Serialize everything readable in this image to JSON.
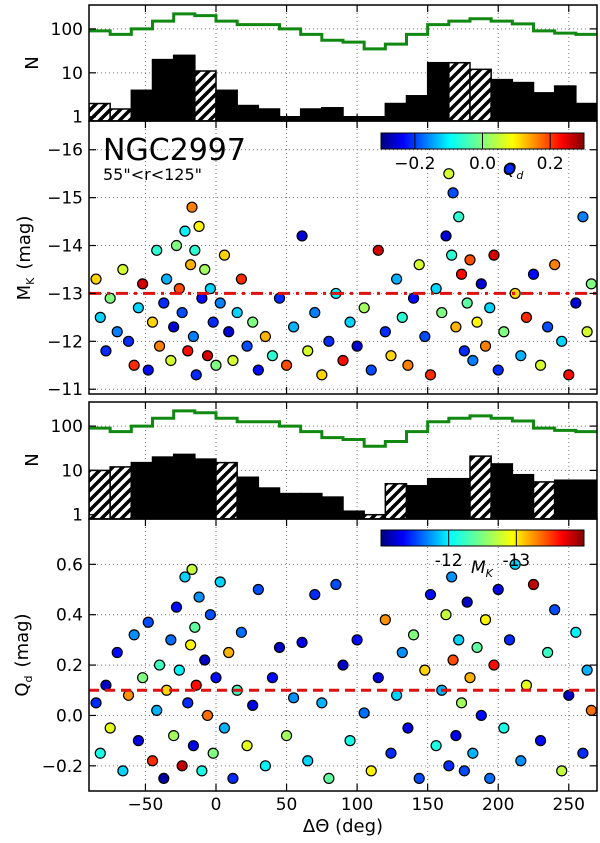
{
  "chart_data": [
    {
      "type": "histogram",
      "panel": "top-histogram-1",
      "ylabel": "N",
      "yscale": "log",
      "ylim": [
        0.8,
        350
      ],
      "yticks": [
        1,
        10,
        100
      ],
      "ytick_labels": [
        "1",
        "10",
        "100"
      ],
      "x_range": [
        -90,
        270
      ],
      "bin_width": 15,
      "bins_low": [
        -90,
        -75,
        -60,
        -45,
        -30,
        -15,
        0,
        15,
        30,
        45,
        60,
        75,
        90,
        105,
        120,
        135,
        150,
        165,
        180,
        195,
        210,
        225,
        240,
        255
      ],
      "counts": [
        2,
        1.5,
        4,
        20,
        25,
        11,
        4,
        1.8,
        1.5,
        1,
        1.5,
        1.6,
        1,
        1,
        2,
        3,
        17,
        17,
        12,
        7,
        6,
        3.5,
        5,
        2
      ],
      "hatched": [
        true,
        true,
        false,
        false,
        false,
        true,
        false,
        false,
        false,
        false,
        false,
        false,
        false,
        false,
        false,
        false,
        false,
        true,
        true,
        false,
        false,
        false,
        false,
        false
      ],
      "envelope_values": [
        90,
        75,
        100,
        150,
        220,
        200,
        150,
        125,
        125,
        100,
        75,
        55,
        50,
        35,
        45,
        75,
        125,
        150,
        170,
        150,
        130,
        90,
        80,
        75
      ],
      "envelope_color": "#118811"
    },
    {
      "type": "scatter",
      "panel": "top-scatter-MK",
      "title": "NGC2997",
      "subtitle": "55\"<r<125\"",
      "xlim": [
        -90,
        270
      ],
      "ylim": [
        -10.9,
        -16.6
      ],
      "ylabel": "M_K  (mag)",
      "yticks": [
        -11,
        -12,
        -13,
        -14,
        -15,
        -16
      ],
      "ytick_labels": [
        "−11",
        "−12",
        "−13",
        "−14",
        "−15",
        "−16"
      ],
      "threshold": -13,
      "threshold_color": "#dd1111",
      "colorbar": {
        "label": "Q_d",
        "range": [
          -0.3,
          0.3
        ],
        "ticks": [
          -0.2,
          0.0,
          0.2
        ],
        "tick_labels": [
          "−0.2",
          "0.0",
          "0.2"
        ]
      },
      "points": [
        [
          -85,
          -13.3,
          0.1
        ],
        [
          -82,
          -12.5,
          -0.1
        ],
        [
          -78,
          -11.8,
          -0.2
        ],
        [
          -75,
          -12.9,
          0.0
        ],
        [
          -70,
          -12.2,
          -0.15
        ],
        [
          -66,
          -13.5,
          0.05
        ],
        [
          -62,
          -12.0,
          -0.2
        ],
        [
          -58,
          -11.5,
          0.2
        ],
        [
          -55,
          -12.7,
          -0.1
        ],
        [
          -52,
          -13.2,
          0.25
        ],
        [
          -48,
          -11.4,
          -0.22
        ],
        [
          -45,
          -12.4,
          0.1
        ],
        [
          -42,
          -13.9,
          -0.05
        ],
        [
          -40,
          -11.9,
          0.15
        ],
        [
          -37,
          -12.8,
          -0.2
        ],
        [
          -35,
          -13.3,
          -0.12
        ],
        [
          -32,
          -11.6,
          0.05
        ],
        [
          -30,
          -12.3,
          -0.25
        ],
        [
          -28,
          -14.0,
          0.0
        ],
        [
          -26,
          -13.1,
          0.18
        ],
        [
          -24,
          -12.6,
          -0.18
        ],
        [
          -22,
          -14.3,
          -0.08
        ],
        [
          -20,
          -11.8,
          0.22
        ],
        [
          -18,
          -13.6,
          0.12
        ],
        [
          -17,
          -14.8,
          0.15
        ],
        [
          -16,
          -12.1,
          -0.15
        ],
        [
          -15,
          -13.9,
          -0.05
        ],
        [
          -14,
          -11.3,
          -0.2
        ],
        [
          -12,
          -14.4,
          0.08
        ],
        [
          -10,
          -12.9,
          -0.22
        ],
        [
          -8,
          -13.5,
          0.02
        ],
        [
          -6,
          -11.7,
          0.25
        ],
        [
          -4,
          -13.1,
          -0.1
        ],
        [
          -2,
          -12.4,
          -0.2
        ],
        [
          0,
          -11.5,
          0.0
        ],
        [
          3,
          -12.8,
          -0.15
        ],
        [
          6,
          -13.8,
          0.1
        ],
        [
          9,
          -12.2,
          -0.25
        ],
        [
          12,
          -11.6,
          0.05
        ],
        [
          15,
          -12.6,
          -0.1
        ],
        [
          18,
          -13.3,
          0.2
        ],
        [
          22,
          -11.9,
          -0.18
        ],
        [
          26,
          -12.4,
          0.0
        ],
        [
          30,
          -11.4,
          -0.22
        ],
        [
          35,
          -12.1,
          0.12
        ],
        [
          40,
          -11.7,
          -0.05
        ],
        [
          45,
          -12.9,
          -0.2
        ],
        [
          50,
          -11.5,
          0.18
        ],
        [
          55,
          -12.3,
          -0.12
        ],
        [
          61,
          -14.2,
          -0.25
        ],
        [
          65,
          -11.8,
          0.05
        ],
        [
          70,
          -12.6,
          -0.15
        ],
        [
          75,
          -11.3,
          0.1
        ],
        [
          80,
          -12.0,
          -0.2
        ],
        [
          85,
          -13.0,
          -0.08
        ],
        [
          90,
          -11.6,
          0.22
        ],
        [
          95,
          -12.4,
          -0.1
        ],
        [
          100,
          -11.9,
          -0.25
        ],
        [
          105,
          -12.7,
          0.02
        ],
        [
          110,
          -11.4,
          -0.18
        ],
        [
          115,
          -13.9,
          0.25
        ],
        [
          120,
          -12.2,
          -0.2
        ],
        [
          124,
          -11.7,
          0.1
        ],
        [
          128,
          -13.3,
          -0.12
        ],
        [
          132,
          -12.5,
          -0.05
        ],
        [
          136,
          -11.5,
          0.15
        ],
        [
          140,
          -12.9,
          -0.22
        ],
        [
          144,
          -13.6,
          0.05
        ],
        [
          148,
          -12.1,
          -0.18
        ],
        [
          152,
          -11.3,
          0.2
        ],
        [
          156,
          -13.1,
          -0.1
        ],
        [
          160,
          -12.6,
          0.0
        ],
        [
          163,
          -14.2,
          -0.25
        ],
        [
          165,
          -15.5,
          0.05
        ],
        [
          167,
          -13.8,
          -0.05
        ],
        [
          168,
          -15.1,
          -0.18
        ],
        [
          170,
          -12.3,
          0.12
        ],
        [
          172,
          -14.6,
          -0.05
        ],
        [
          174,
          -13.4,
          0.22
        ],
        [
          176,
          -11.8,
          -0.2
        ],
        [
          178,
          -12.8,
          -0.02
        ],
        [
          180,
          -13.7,
          0.18
        ],
        [
          182,
          -11.6,
          -0.15
        ],
        [
          185,
          -12.4,
          0.08
        ],
        [
          188,
          -13.2,
          -0.25
        ],
        [
          191,
          -11.9,
          0.15
        ],
        [
          194,
          -12.7,
          -0.1
        ],
        [
          197,
          -13.8,
          0.25
        ],
        [
          200,
          -11.4,
          -0.2
        ],
        [
          204,
          -12.2,
          0.0
        ],
        [
          208,
          -15.6,
          -0.2
        ],
        [
          212,
          -13.0,
          0.1
        ],
        [
          216,
          -11.7,
          -0.12
        ],
        [
          220,
          -12.5,
          0.2
        ],
        [
          225,
          -13.4,
          -0.22
        ],
        [
          230,
          -11.5,
          0.05
        ],
        [
          235,
          -12.3,
          -0.18
        ],
        [
          240,
          -13.6,
          0.15
        ],
        [
          245,
          -12.0,
          -0.1
        ],
        [
          250,
          -11.3,
          0.22
        ],
        [
          255,
          -12.8,
          -0.25
        ],
        [
          260,
          -14.6,
          -0.15
        ],
        [
          263,
          -12.2,
          0.05
        ],
        [
          266,
          -13.2,
          0.0
        ]
      ]
    },
    {
      "type": "histogram",
      "panel": "bottom-histogram-2",
      "ylabel": "N",
      "yscale": "log",
      "ylim": [
        0.8,
        350
      ],
      "yticks": [
        1,
        10,
        100
      ],
      "ytick_labels": [
        "1",
        "10",
        "100"
      ],
      "x_range": [
        -90,
        270
      ],
      "bin_width": 15,
      "bins_low": [
        -90,
        -75,
        -60,
        -45,
        -30,
        -15,
        0,
        15,
        30,
        45,
        60,
        75,
        90,
        105,
        120,
        135,
        150,
        165,
        180,
        195,
        210,
        225,
        240,
        255
      ],
      "counts": [
        10,
        12,
        15,
        20,
        23,
        18,
        15,
        7,
        4,
        3,
        3,
        2.5,
        1.2,
        1,
        5,
        4.5,
        6.5,
        6.5,
        21,
        14,
        8,
        5.5,
        6,
        6
      ],
      "hatched": [
        true,
        true,
        false,
        false,
        false,
        false,
        true,
        false,
        false,
        false,
        false,
        false,
        false,
        true,
        true,
        false,
        false,
        false,
        true,
        false,
        false,
        true,
        false,
        false
      ],
      "envelope_values": [
        90,
        75,
        100,
        150,
        220,
        200,
        150,
        125,
        125,
        100,
        75,
        55,
        50,
        35,
        45,
        75,
        125,
        150,
        170,
        150,
        130,
        90,
        80,
        75
      ],
      "envelope_color": "#118811"
    },
    {
      "type": "scatter",
      "panel": "bottom-scatter-Qd",
      "xlim": [
        -90,
        270
      ],
      "ylim": [
        -0.3,
        0.78
      ],
      "xlabel": "ΔΘ (deg)",
      "ylabel": "Q_d (mag)",
      "xticks": [
        -50,
        0,
        50,
        100,
        150,
        200,
        250
      ],
      "xtick_labels": [
        "−50",
        "0",
        "50",
        "100",
        "150",
        "200",
        "250"
      ],
      "yticks": [
        -0.2,
        0.0,
        0.2,
        0.4,
        0.6
      ],
      "ytick_labels": [
        "−0.2",
        "0.0",
        "0.2",
        "0.4",
        "0.6"
      ],
      "threshold": 0.1,
      "threshold_color": "#dd1111",
      "colorbar": {
        "label": "M_K",
        "range": [
          -11,
          -14
        ],
        "ticks": [
          -12,
          -13
        ],
        "tick_labels": [
          "-12",
          "-13"
        ]
      },
      "points": [
        [
          -85,
          0.05,
          -11.5
        ],
        [
          -82,
          -0.15,
          -12.2
        ],
        [
          -78,
          0.12,
          -11.2
        ],
        [
          -75,
          -0.05,
          -12.8
        ],
        [
          -70,
          0.25,
          -11.4
        ],
        [
          -66,
          -0.22,
          -12.0
        ],
        [
          -62,
          0.08,
          -13.2
        ],
        [
          -58,
          0.32,
          -11.8
        ],
        [
          -55,
          -0.1,
          -11.3
        ],
        [
          -52,
          0.15,
          -12.5
        ],
        [
          -48,
          0.37,
          -11.6
        ],
        [
          -45,
          -0.18,
          -13.5
        ],
        [
          -42,
          0.02,
          -11.9
        ],
        [
          -40,
          0.2,
          -12.3
        ],
        [
          -37,
          -0.25,
          -11.1
        ],
        [
          -35,
          0.1,
          -13.0
        ],
        [
          -32,
          0.3,
          -11.7
        ],
        [
          -30,
          -0.08,
          -12.6
        ],
        [
          -28,
          0.43,
          -11.4
        ],
        [
          -26,
          0.18,
          -12.1
        ],
        [
          -24,
          -0.2,
          -13.8
        ],
        [
          -22,
          0.55,
          -12.0
        ],
        [
          -20,
          0.05,
          -11.5
        ],
        [
          -18,
          0.28,
          -12.9
        ],
        [
          -17,
          0.58,
          -12.7
        ],
        [
          -16,
          -0.12,
          -11.3
        ],
        [
          -15,
          0.35,
          -12.4
        ],
        [
          -14,
          0.12,
          -13.6
        ],
        [
          -12,
          0.47,
          -11.8
        ],
        [
          -10,
          -0.22,
          -12.2
        ],
        [
          -8,
          0.22,
          -11.2
        ],
        [
          -6,
          0.0,
          -13.3
        ],
        [
          -4,
          0.4,
          -11.6
        ],
        [
          -2,
          -0.15,
          -12.5
        ],
        [
          0,
          0.15,
          -11.4
        ],
        [
          3,
          0.53,
          -12.0
        ],
        [
          6,
          -0.05,
          -11.9
        ],
        [
          9,
          0.25,
          -13.1
        ],
        [
          12,
          -0.25,
          -11.5
        ],
        [
          15,
          0.1,
          -12.3
        ],
        [
          18,
          0.33,
          -11.7
        ],
        [
          22,
          -0.12,
          -12.8
        ],
        [
          26,
          0.04,
          -11.3
        ],
        [
          30,
          0.5,
          -11.6
        ],
        [
          35,
          -0.2,
          -12.1
        ],
        [
          40,
          0.15,
          -11.4
        ],
        [
          45,
          0.27,
          -11.2
        ],
        [
          50,
          -0.08,
          -12.6
        ],
        [
          55,
          0.07,
          -11.8
        ],
        [
          61,
          0.29,
          -11.3
        ],
        [
          65,
          -0.18,
          -12.0
        ],
        [
          70,
          0.48,
          -11.5
        ],
        [
          75,
          0.05,
          -11.9
        ],
        [
          80,
          -0.25,
          -12.4
        ],
        [
          85,
          0.52,
          -11.6
        ],
        [
          90,
          0.2,
          -11.2
        ],
        [
          95,
          -0.1,
          -12.2
        ],
        [
          100,
          0.3,
          -11.4
        ],
        [
          105,
          0.01,
          -11.7
        ],
        [
          110,
          -0.22,
          -12.9
        ],
        [
          115,
          0.15,
          -11.3
        ],
        [
          120,
          0.38,
          -13.2
        ],
        [
          124,
          -0.15,
          -11.5
        ],
        [
          128,
          0.08,
          -12.0
        ],
        [
          132,
          0.25,
          -11.8
        ],
        [
          136,
          -0.05,
          -11.3
        ],
        [
          140,
          0.32,
          -12.5
        ],
        [
          144,
          -0.25,
          -11.6
        ],
        [
          148,
          0.18,
          -13.0
        ],
        [
          152,
          0.48,
          -11.4
        ],
        [
          156,
          -0.12,
          -12.2
        ],
        [
          160,
          0.1,
          -11.9
        ],
        [
          163,
          0.4,
          -12.7
        ],
        [
          165,
          -0.2,
          -11.5
        ],
        [
          167,
          0.55,
          -11.8
        ],
        [
          168,
          0.22,
          -13.4
        ],
        [
          170,
          -0.08,
          -11.3
        ],
        [
          172,
          0.3,
          -12.0
        ],
        [
          174,
          0.05,
          -12.6
        ],
        [
          176,
          -0.22,
          -11.6
        ],
        [
          178,
          0.45,
          -11.2
        ],
        [
          180,
          0.15,
          -13.1
        ],
        [
          182,
          -0.15,
          -11.9
        ],
        [
          185,
          0.27,
          -12.4
        ],
        [
          188,
          0.0,
          -11.4
        ],
        [
          191,
          0.38,
          -12.9
        ],
        [
          194,
          -0.25,
          -11.7
        ],
        [
          197,
          0.2,
          -13.6
        ],
        [
          200,
          0.5,
          -11.3
        ],
        [
          204,
          -0.05,
          -12.2
        ],
        [
          208,
          0.3,
          -11.5
        ],
        [
          212,
          0.6,
          -12.0
        ],
        [
          216,
          -0.18,
          -11.8
        ],
        [
          220,
          0.12,
          -12.8
        ],
        [
          225,
          0.52,
          -13.8
        ],
        [
          230,
          -0.1,
          -11.4
        ],
        [
          235,
          0.25,
          -12.3
        ],
        [
          240,
          0.42,
          -11.6
        ],
        [
          245,
          -0.22,
          -12.7
        ],
        [
          250,
          0.08,
          -11.2
        ],
        [
          255,
          0.33,
          -12.1
        ],
        [
          260,
          -0.15,
          -11.5
        ],
        [
          263,
          0.18,
          -11.9
        ],
        [
          266,
          0.02,
          -13.3
        ]
      ]
    }
  ],
  "labels": {
    "title": "NGC2997",
    "subtitle": "55\"<r<125\"",
    "n_label": "N",
    "mk_axis_label": "M",
    "mk_axis_sub": "K",
    "mk_axis_unit": "(mag)",
    "qd_axis_label": "Q",
    "qd_axis_sub": "d",
    "qd_axis_unit": "(mag)",
    "xlabel": "ΔΘ (deg)",
    "cbar1_label": "Q",
    "cbar1_sub": "d",
    "cbar2_label": "M",
    "cbar2_sub": "K"
  }
}
